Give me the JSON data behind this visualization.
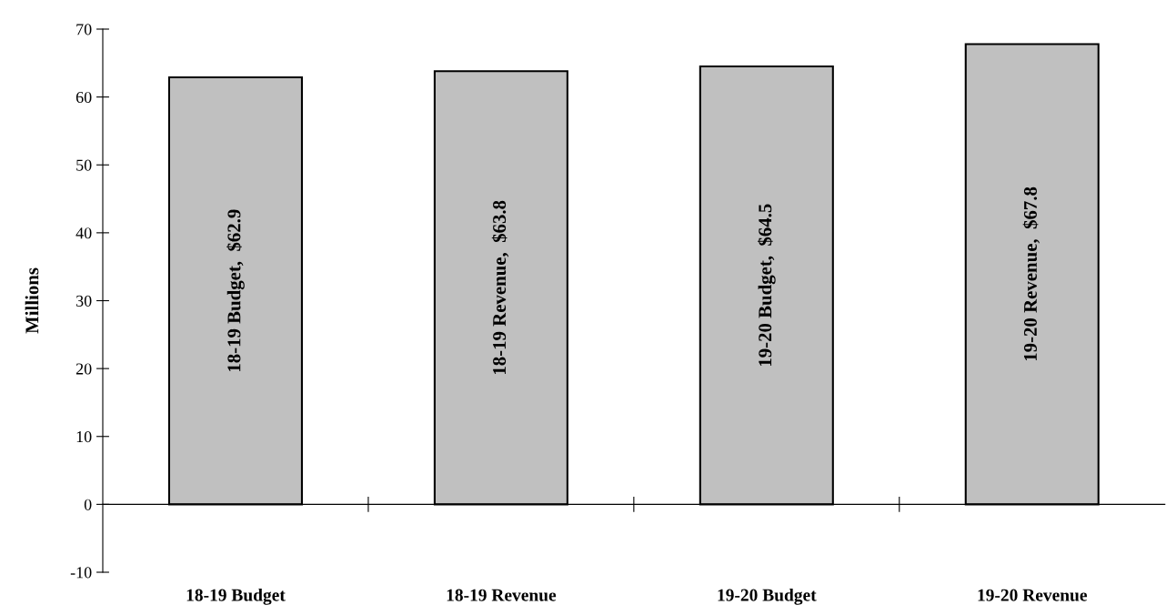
{
  "chart_data": {
    "type": "bar",
    "ylabel": "Millions",
    "categories": [
      "18-19 Budget",
      "18-19 Revenue",
      "19-20 Budget",
      "19-20 Revenue"
    ],
    "values": [
      62.9,
      63.8,
      64.5,
      67.8
    ],
    "value_labels": [
      "18-19 Budget,  $62.9",
      "18-19 Revenue,  $63.8",
      "19-20 Budget,  $64.5",
      "19-20 Revenue,  $67.8"
    ],
    "color": "#c0c0c0",
    "ylim": [
      -10,
      70
    ],
    "yticks": [
      -10,
      0,
      10,
      20,
      30,
      40,
      50,
      60,
      70
    ]
  }
}
